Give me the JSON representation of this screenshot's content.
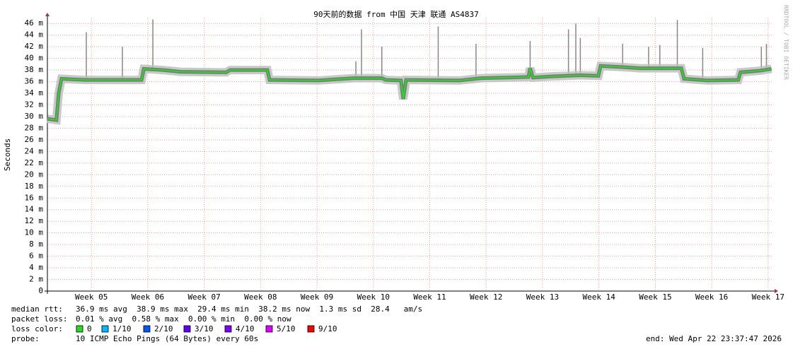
{
  "chart_data": {
    "type": "line",
    "title": "90天前的数据 from 中国 天津 联通 AS4837",
    "y_label": "Seconds",
    "watermark": "RRDTOOL / TOBI OETIKER",
    "xlim": [
      4.22,
      17.09
    ],
    "xticks": [
      {
        "value": 5,
        "label": "Week 05"
      },
      {
        "value": 6,
        "label": "Week 06"
      },
      {
        "value": 7,
        "label": "Week 07"
      },
      {
        "value": 8,
        "label": "Week 08"
      },
      {
        "value": 9,
        "label": "Week 09"
      },
      {
        "value": 10,
        "label": "Week 10"
      },
      {
        "value": 11,
        "label": "Week 11"
      },
      {
        "value": 12,
        "label": "Week 12"
      },
      {
        "value": 13,
        "label": "Week 13"
      },
      {
        "value": 14,
        "label": "Week 14"
      },
      {
        "value": 15,
        "label": "Week 15"
      },
      {
        "value": 16,
        "label": "Week 16"
      },
      {
        "value": 17,
        "label": "Week 17"
      }
    ],
    "ylim": [
      0,
      47
    ],
    "yticks": [
      0,
      {
        "value": 2,
        "label": "2 m"
      },
      {
        "value": 4,
        "label": "4 m"
      },
      {
        "value": 6,
        "label": "6 m"
      },
      {
        "value": 8,
        "label": "8 m"
      },
      {
        "value": 10,
        "label": "10 m"
      },
      {
        "value": 12,
        "label": "12 m"
      },
      {
        "value": 14,
        "label": "14 m"
      },
      {
        "value": 16,
        "label": "16 m"
      },
      {
        "value": 18,
        "label": "18 m"
      },
      {
        "value": 20,
        "label": "20 m"
      },
      {
        "value": 22,
        "label": "22 m"
      },
      {
        "value": 24,
        "label": "24 m"
      },
      {
        "value": 26,
        "label": "26 m"
      },
      {
        "value": 28,
        "label": "28 m"
      },
      {
        "value": 30,
        "label": "30 m"
      },
      {
        "value": 32,
        "label": "32 m"
      },
      {
        "value": 34,
        "label": "34 m"
      },
      {
        "value": 36,
        "label": "36 m"
      },
      {
        "value": 38,
        "label": "38 m"
      },
      {
        "value": 40,
        "label": "40 m"
      },
      {
        "value": 42,
        "label": "42 m"
      },
      {
        "value": 44,
        "label": "44 m"
      },
      {
        "value": 46,
        "label": "46 m"
      }
    ],
    "grid": true,
    "series": [
      {
        "color": "#22dd22",
        "x": [
          4.22,
          4.38,
          4.42,
          4.47,
          4.89,
          5.89,
          5.93,
          6.27,
          6.58,
          7.39,
          7.46,
          8.12,
          8.16,
          9.03,
          9.65,
          10.15,
          10.22,
          10.49,
          10.53,
          10.58,
          11.53,
          11.91,
          12.41,
          12.75,
          12.78,
          12.83,
          13.17,
          13.67,
          13.99,
          14.03,
          14.42,
          14.73,
          15.46,
          15.51,
          15.93,
          16.47,
          16.51,
          16.87,
          17.06
        ],
        "values": [
          29.6,
          29.4,
          34.0,
          36.5,
          36.3,
          36.3,
          38.2,
          38.0,
          37.7,
          37.6,
          38.0,
          38.0,
          36.3,
          36.2,
          36.6,
          36.6,
          36.3,
          36.2,
          33.0,
          36.3,
          36.2,
          36.6,
          36.7,
          36.8,
          38.3,
          36.7,
          36.9,
          37.1,
          37.0,
          38.7,
          38.5,
          38.3,
          38.3,
          36.5,
          36.2,
          36.3,
          37.6,
          37.9,
          38.2
        ]
      },
      {
        "color": "#888888",
        "x": [
          4.91,
          5.55,
          6.09,
          9.69,
          9.79,
          10.15,
          11.15,
          11.82,
          12.78,
          13.46,
          13.59,
          13.67,
          14.42,
          14.88,
          15.08,
          15.39,
          15.84,
          16.88,
          16.97
        ],
        "values": [
          44.5,
          42,
          46.7,
          39.5,
          45,
          42,
          45.5,
          42.5,
          43,
          45,
          46,
          43.5,
          42.5,
          42,
          42.3,
          46.6,
          41.8,
          42,
          42.5
        ]
      }
    ]
  },
  "legend": {
    "rows": [
      {
        "label": "median rtt:",
        "text": "36.9 ms avg  38.9 ms max  29.4 ms min  38.2 ms now  1.3 ms sd  28.4   am/s"
      },
      {
        "label": "packet loss:",
        "text": "0.01 % avg  0.58 % max  0.00 % min  0.00 % now"
      }
    ],
    "loss_label": "loss color:",
    "loss_colors": [
      {
        "label": "0",
        "color": "#22dd22"
      },
      {
        "label": "1/10",
        "color": "#00b8ff"
      },
      {
        "label": "2/10",
        "color": "#0059ff"
      },
      {
        "label": "3/10",
        "color": "#5e00ff"
      },
      {
        "label": "4/10",
        "color": "#7e00ff"
      },
      {
        "label": "5/10",
        "color": "#dd00ff"
      },
      {
        "label": "9/10",
        "color": "#ff0000"
      }
    ],
    "probe_label": "probe:",
    "probe": "10 ICMP Echo Pings (64 Bytes) every 60s",
    "end": "end: Wed Apr 22 23:37:47 2026"
  }
}
